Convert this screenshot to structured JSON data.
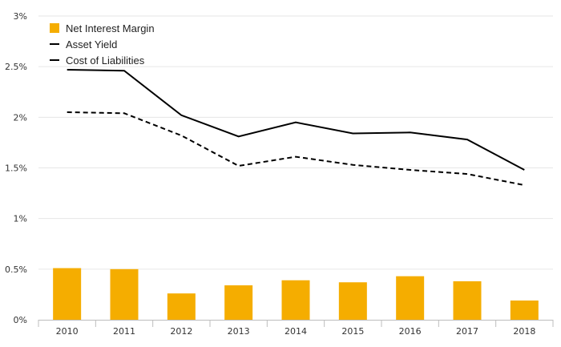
{
  "chart_data": {
    "type": "bar",
    "categories": [
      "2010",
      "2011",
      "2012",
      "2013",
      "2014",
      "2015",
      "2016",
      "2017",
      "2018"
    ],
    "series": [
      {
        "name": "Net Interest Margin",
        "type": "bar",
        "color": "#f5ad00",
        "values": [
          0.51,
          0.5,
          0.26,
          0.34,
          0.39,
          0.37,
          0.43,
          0.38,
          0.19
        ]
      },
      {
        "name": "Asset Yield",
        "type": "line",
        "style": "solid",
        "color": "#000000",
        "values": [
          2.47,
          2.46,
          2.02,
          1.81,
          1.95,
          1.84,
          1.85,
          1.78,
          1.48
        ]
      },
      {
        "name": "Cost of Liabilities",
        "type": "line",
        "style": "dashed",
        "color": "#000000",
        "values": [
          2.05,
          2.04,
          1.82,
          1.52,
          1.61,
          1.53,
          1.48,
          1.44,
          1.33
        ]
      }
    ],
    "y_ticks": [
      "0%",
      "0.5%",
      "1%",
      "1.5%",
      "2%",
      "2.5%",
      "3%"
    ],
    "ylim": [
      0,
      3
    ],
    "y_unit": "%",
    "grid": true,
    "legend_position": "top-left"
  }
}
